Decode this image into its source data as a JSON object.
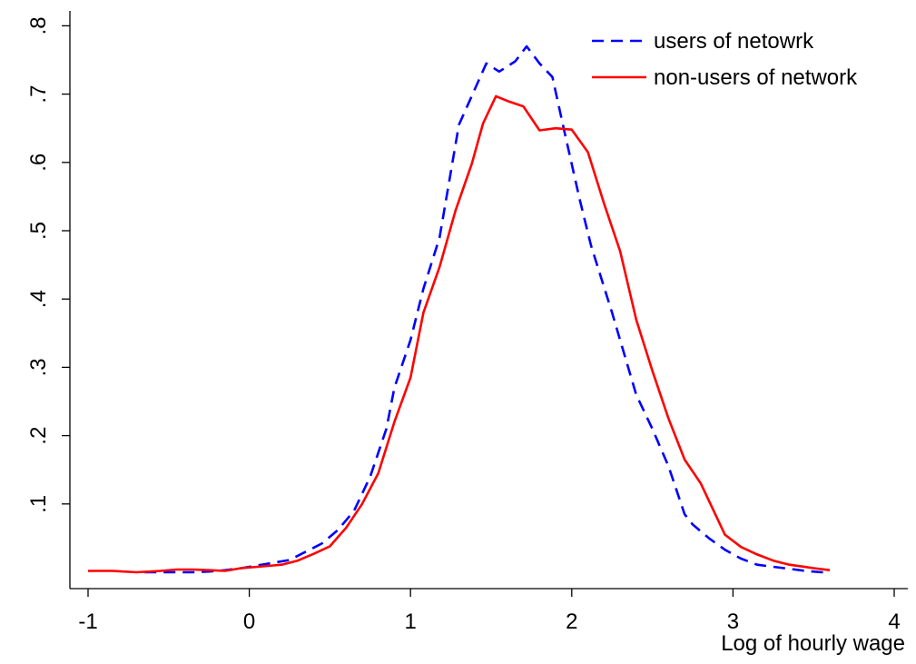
{
  "chart_data": {
    "type": "line",
    "xlabel": "Log of hourly wage",
    "ylabel": "",
    "xlim": [
      -1,
      4
    ],
    "ylim": [
      0,
      0.8
    ],
    "xticks": [
      -1,
      0,
      1,
      2,
      3,
      4
    ],
    "xtick_labels": [
      "-1",
      "0",
      "1",
      "2",
      "3",
      "4"
    ],
    "yticks": [
      0.1,
      0.2,
      0.3,
      0.4,
      0.5,
      0.6,
      0.7,
      0.8
    ],
    "ytick_labels": [
      ".1",
      ".2",
      ".3",
      ".4",
      ".5",
      ".6",
      ".7",
      ".8"
    ],
    "grid": false,
    "legend_position": "top-right",
    "series": [
      {
        "name": "users of netowrk",
        "color": "#0000ff",
        "style": "dashed",
        "points": [
          [
            -0.65,
            0.0
          ],
          [
            -0.55,
            0.0
          ],
          [
            -0.45,
            0.0
          ],
          [
            -0.35,
            0.0
          ],
          [
            -0.25,
            0.001
          ],
          [
            -0.15,
            0.003
          ],
          [
            -0.05,
            0.006
          ],
          [
            0.05,
            0.01
          ],
          [
            0.15,
            0.014
          ],
          [
            0.25,
            0.018
          ],
          [
            0.35,
            0.03
          ],
          [
            0.45,
            0.042
          ],
          [
            0.55,
            0.062
          ],
          [
            0.65,
            0.09
          ],
          [
            0.75,
            0.14
          ],
          [
            0.85,
            0.21
          ],
          [
            0.9,
            0.27
          ],
          [
            1.0,
            0.34
          ],
          [
            1.08,
            0.415
          ],
          [
            1.18,
            0.49
          ],
          [
            1.3,
            0.655
          ],
          [
            1.47,
            0.745
          ],
          [
            1.55,
            0.733
          ],
          [
            1.65,
            0.748
          ],
          [
            1.72,
            0.77
          ],
          [
            1.8,
            0.745
          ],
          [
            1.88,
            0.725
          ],
          [
            1.95,
            0.65
          ],
          [
            2.05,
            0.545
          ],
          [
            2.12,
            0.478
          ],
          [
            2.25,
            0.38
          ],
          [
            2.4,
            0.26
          ],
          [
            2.5,
            0.21
          ],
          [
            2.6,
            0.155
          ],
          [
            2.7,
            0.085
          ],
          [
            2.75,
            0.07
          ],
          [
            2.85,
            0.05
          ],
          [
            2.95,
            0.033
          ],
          [
            3.05,
            0.02
          ],
          [
            3.15,
            0.011
          ],
          [
            3.25,
            0.008
          ],
          [
            3.35,
            0.005
          ],
          [
            3.45,
            0.002
          ],
          [
            3.55,
            0.0
          ],
          [
            3.6,
            0.0
          ]
        ]
      },
      {
        "name": "non-users of network",
        "color": "#ff0000",
        "style": "solid",
        "points": [
          [
            -1.0,
            0.002
          ],
          [
            -0.85,
            0.002
          ],
          [
            -0.7,
            0.0
          ],
          [
            -0.55,
            0.002
          ],
          [
            -0.45,
            0.004
          ],
          [
            -0.35,
            0.004
          ],
          [
            -0.25,
            0.003
          ],
          [
            -0.15,
            0.002
          ],
          [
            -0.05,
            0.006
          ],
          [
            0.05,
            0.008
          ],
          [
            0.15,
            0.01
          ],
          [
            0.2,
            0.011
          ],
          [
            0.3,
            0.017
          ],
          [
            0.4,
            0.027
          ],
          [
            0.5,
            0.038
          ],
          [
            0.6,
            0.065
          ],
          [
            0.7,
            0.1
          ],
          [
            0.8,
            0.145
          ],
          [
            0.9,
            0.22
          ],
          [
            1.0,
            0.285
          ],
          [
            1.08,
            0.38
          ],
          [
            1.18,
            0.447
          ],
          [
            1.28,
            0.53
          ],
          [
            1.38,
            0.598
          ],
          [
            1.45,
            0.657
          ],
          [
            1.53,
            0.697
          ],
          [
            1.6,
            0.69
          ],
          [
            1.7,
            0.682
          ],
          [
            1.8,
            0.647
          ],
          [
            1.9,
            0.65
          ],
          [
            2.0,
            0.648
          ],
          [
            2.1,
            0.615
          ],
          [
            2.2,
            0.54
          ],
          [
            2.3,
            0.47
          ],
          [
            2.4,
            0.37
          ],
          [
            2.5,
            0.295
          ],
          [
            2.6,
            0.225
          ],
          [
            2.7,
            0.165
          ],
          [
            2.8,
            0.13
          ],
          [
            2.95,
            0.055
          ],
          [
            3.05,
            0.037
          ],
          [
            3.15,
            0.026
          ],
          [
            3.25,
            0.017
          ],
          [
            3.35,
            0.011
          ],
          [
            3.5,
            0.006
          ],
          [
            3.6,
            0.003
          ]
        ]
      }
    ]
  }
}
